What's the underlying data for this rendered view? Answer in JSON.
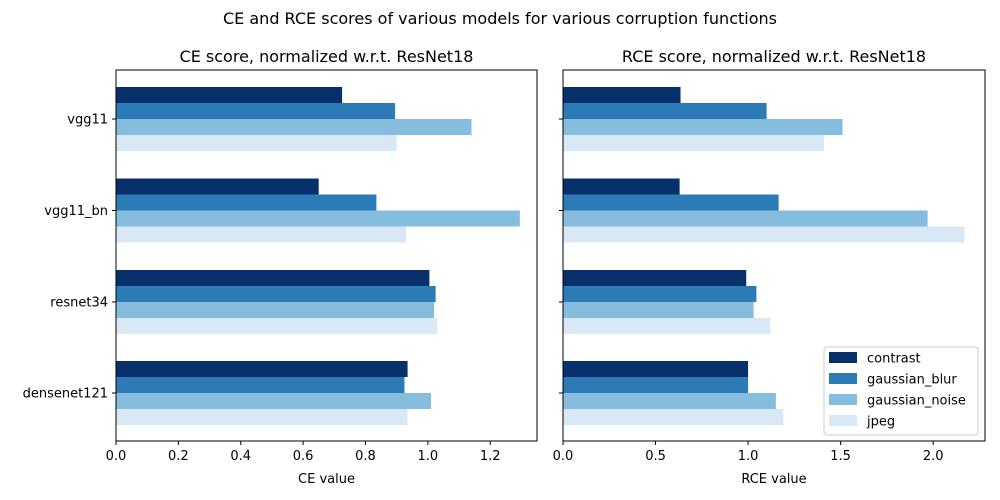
{
  "figure_title": "CE and RCE scores of various models for various corruption functions",
  "legend_position": "lower-right (right panel)",
  "chart_data": [
    {
      "type": "bar",
      "orientation": "horizontal",
      "title": "CE score, normalized w.r.t. ResNet18",
      "xlabel": "CE value",
      "ylabel": "",
      "xlim": [
        0,
        1.35
      ],
      "xticks": [
        "0.0",
        "0.2",
        "0.4",
        "0.6",
        "0.8",
        "1.0",
        "1.2"
      ],
      "grid": false,
      "categories": [
        "vgg11",
        "vgg11_bn",
        "resnet34",
        "densenet121"
      ],
      "series": [
        {
          "name": "contrast",
          "color": "#08306b",
          "values": [
            0.725,
            0.65,
            1.005,
            0.935
          ]
        },
        {
          "name": "gaussian_blur",
          "color": "#2c7bb6",
          "values": [
            0.895,
            0.835,
            1.025,
            0.925
          ]
        },
        {
          "name": "gaussian_noise",
          "color": "#86bcdd",
          "values": [
            1.14,
            1.295,
            1.02,
            1.01
          ]
        },
        {
          "name": "jpeg",
          "color": "#d9e8f5",
          "values": [
            0.9,
            0.93,
            1.03,
            0.935
          ]
        }
      ]
    },
    {
      "type": "bar",
      "orientation": "horizontal",
      "title": "RCE score, normalized w.r.t. ResNet18",
      "xlabel": "RCE value",
      "ylabel": "",
      "xlim": [
        0,
        2.28
      ],
      "xticks": [
        "0.0",
        "0.5",
        "1.0",
        "1.5",
        "2.0"
      ],
      "grid": false,
      "categories": [
        "vgg11",
        "vgg11_bn",
        "resnet34",
        "densenet121"
      ],
      "series": [
        {
          "name": "contrast",
          "color": "#08306b",
          "values": [
            0.635,
            0.63,
            0.99,
            1.0
          ]
        },
        {
          "name": "gaussian_blur",
          "color": "#2c7bb6",
          "values": [
            1.1,
            1.165,
            1.045,
            1.0
          ]
        },
        {
          "name": "gaussian_noise",
          "color": "#86bcdd",
          "values": [
            1.51,
            1.97,
            1.03,
            1.15
          ]
        },
        {
          "name": "jpeg",
          "color": "#d9e8f5",
          "values": [
            1.41,
            2.17,
            1.12,
            1.19
          ]
        }
      ]
    }
  ]
}
